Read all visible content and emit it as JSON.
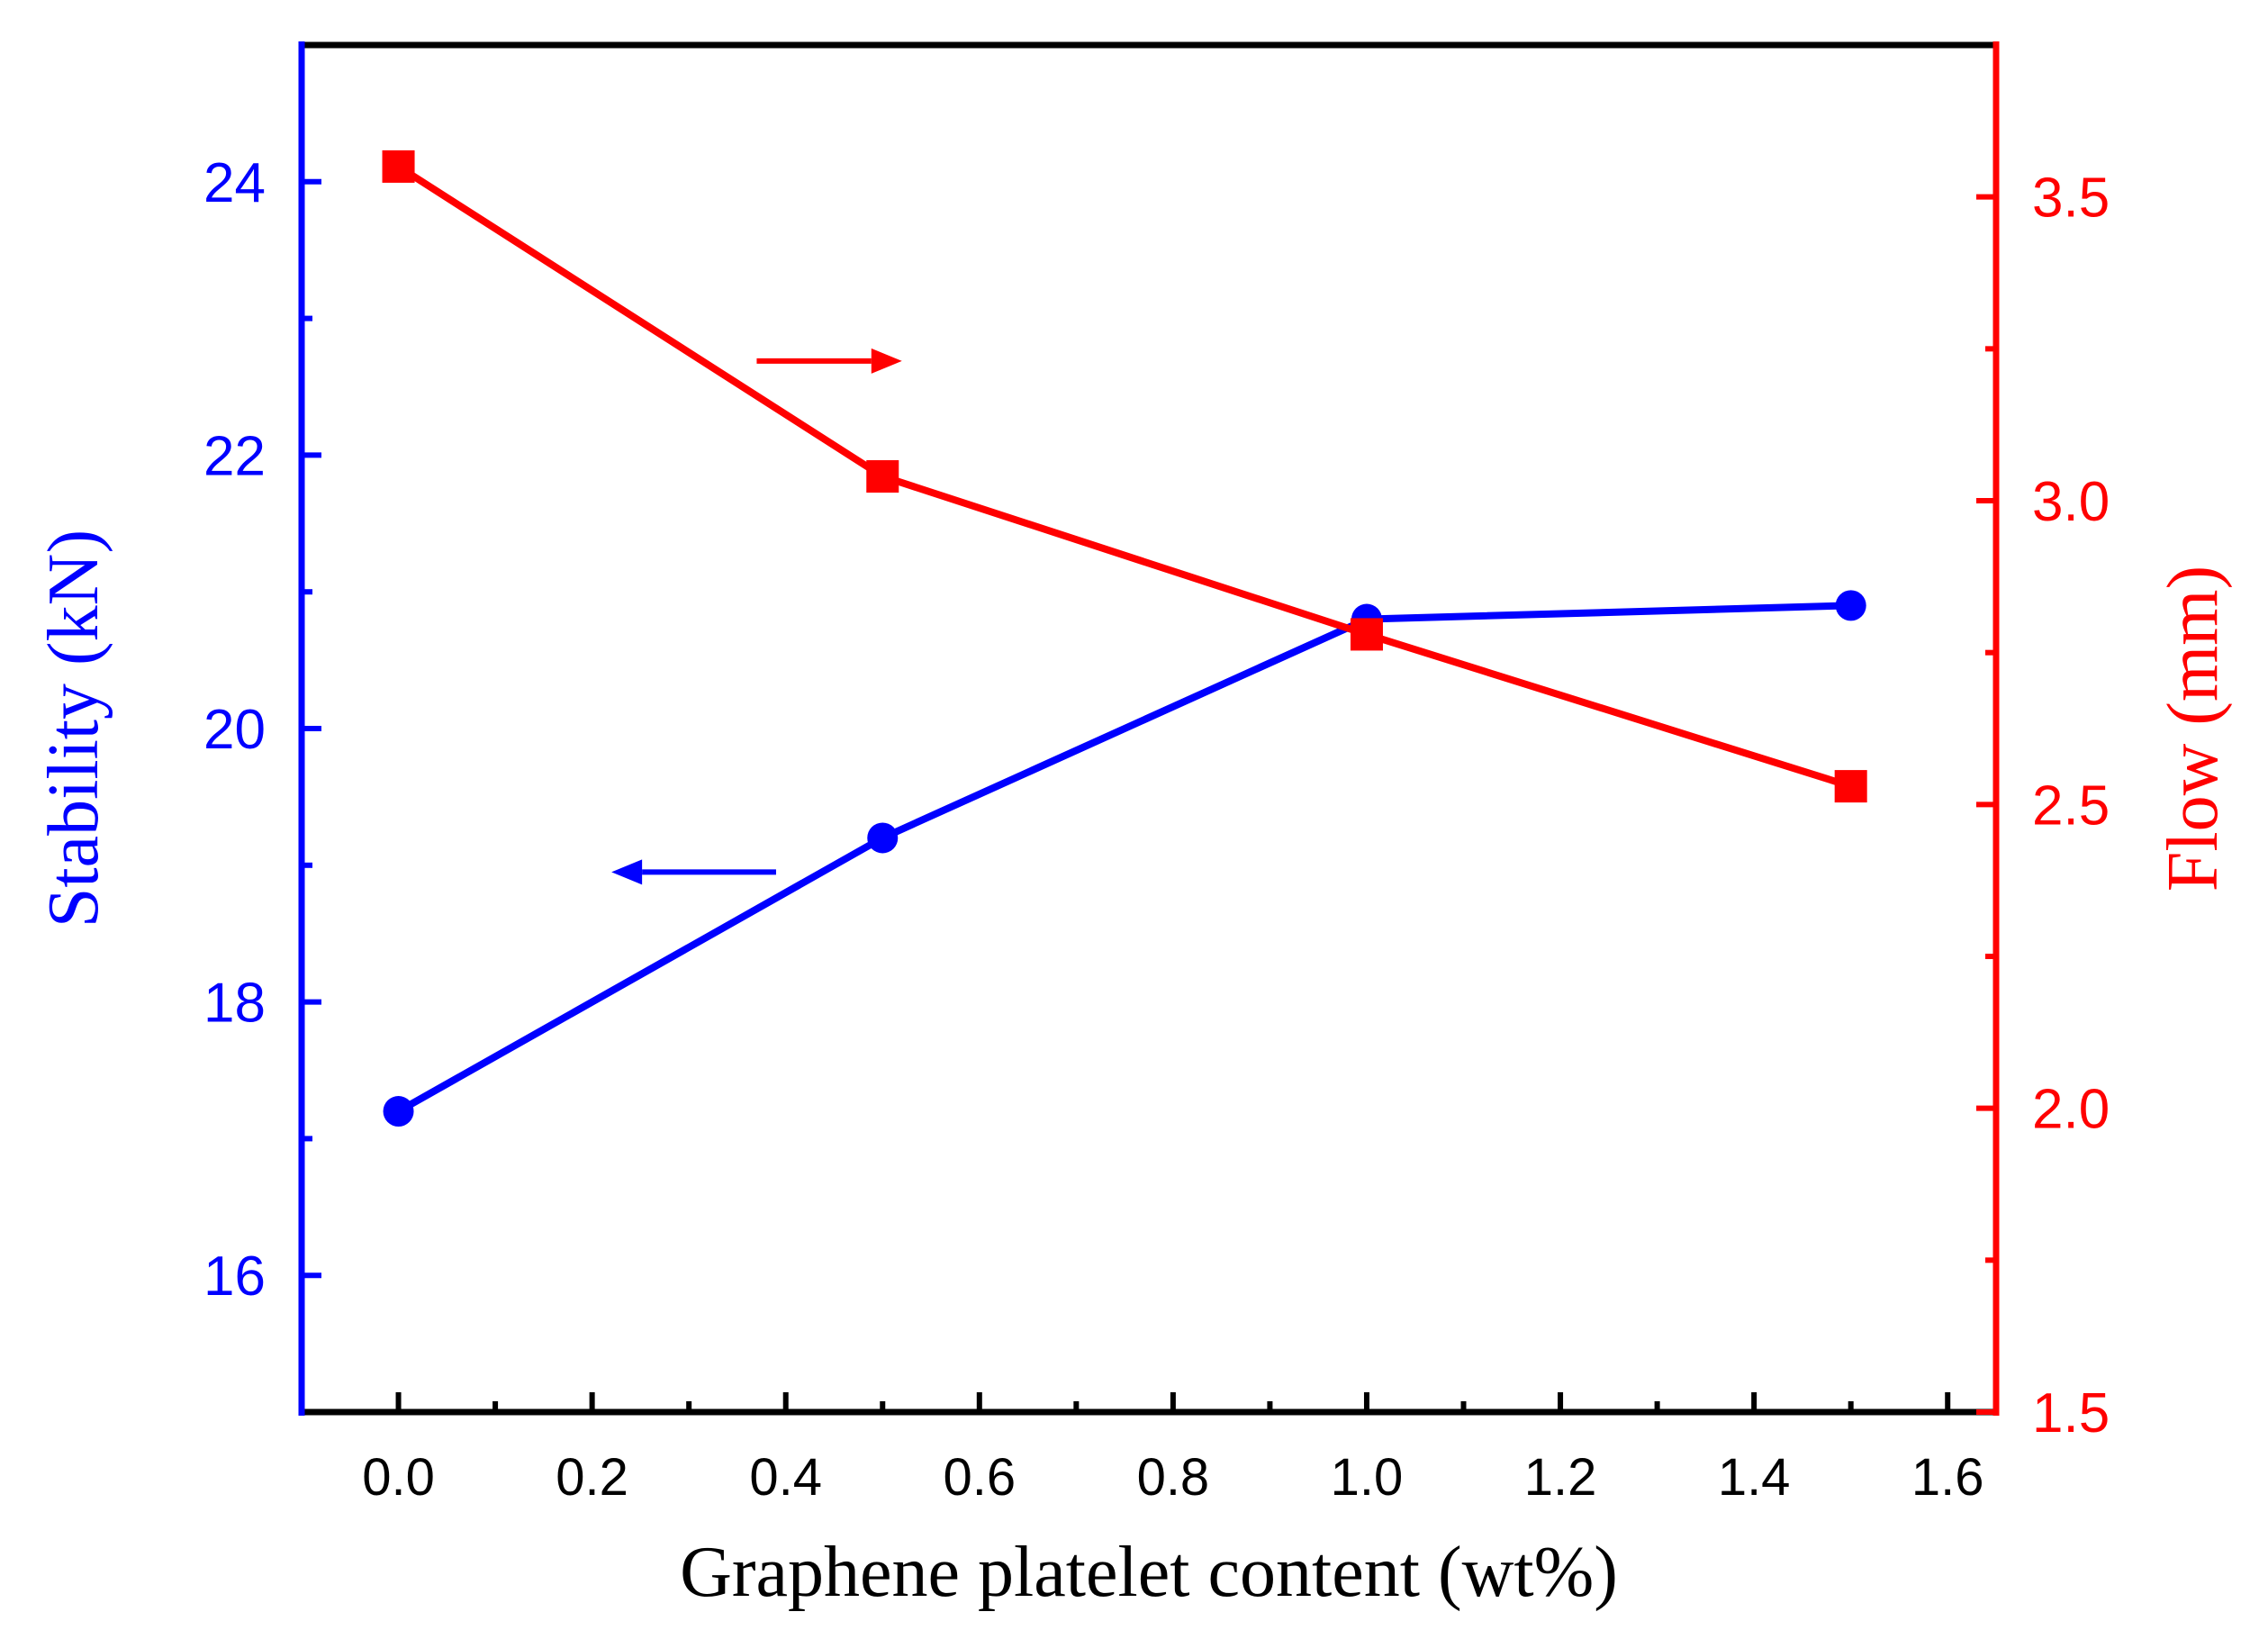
{
  "chart_data": {
    "type": "line",
    "title": "",
    "xlabel": "Graphene platelet content (wt%)",
    "ylabel_left": "Stability (kN)",
    "ylabel_right": "Flow (mm)",
    "xlim": [
      -0.1,
      1.65
    ],
    "ylim_left": [
      15,
      25
    ],
    "ylim_right": [
      1.5,
      3.75
    ],
    "x_ticks": [
      "0.0",
      "0.2",
      "0.4",
      "0.6",
      "0.8",
      "1.0",
      "1.2",
      "1.4",
      "1.6"
    ],
    "y_left_ticks": [
      "16",
      "18",
      "20",
      "22",
      "24"
    ],
    "y_right_ticks": [
      "1.5",
      "2.0",
      "2.5",
      "3.0",
      "3.5"
    ],
    "grid": false,
    "series": [
      {
        "name": "Stability",
        "axis": "left",
        "marker": "circle",
        "color": "#0000ff",
        "x": [
          0.0,
          0.5,
          1.0,
          1.5
        ],
        "y": [
          17.2,
          19.2,
          20.8,
          20.9
        ]
      },
      {
        "name": "Flow",
        "axis": "right",
        "marker": "square",
        "color": "#ff0000",
        "x": [
          0.0,
          0.5,
          1.0,
          1.5
        ],
        "y": [
          3.55,
          3.04,
          2.78,
          2.53
        ]
      }
    ],
    "annotations": [
      {
        "type": "arrow",
        "direction": "right",
        "color": "#ff0000",
        "at_x": 0.37,
        "to_x": 0.52,
        "at_y_right": 3.23
      },
      {
        "type": "arrow",
        "direction": "left",
        "color": "#0000ff",
        "at_x": 0.39,
        "to_x": 0.22,
        "at_y_left": 18.95
      }
    ]
  }
}
